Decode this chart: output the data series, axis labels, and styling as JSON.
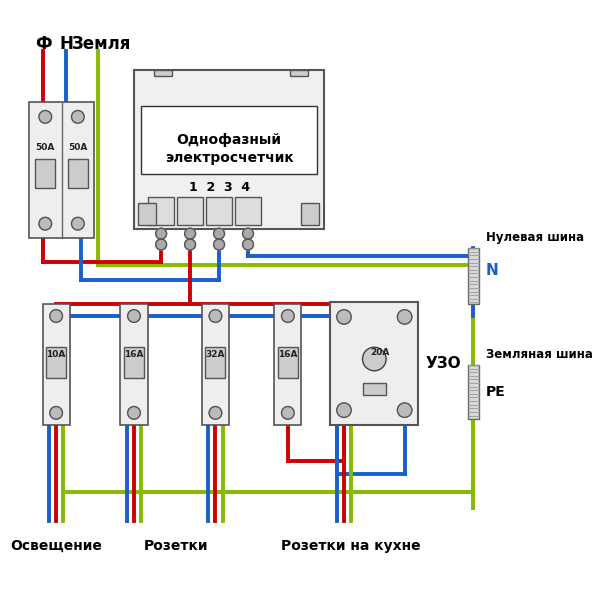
{
  "bg_color": "#ffffff",
  "wire_red": "#cc0000",
  "wire_blue": "#1a5fcc",
  "wire_green": "#88bb00",
  "label_F": "Ф",
  "label_N_top": "Н",
  "label_Z": "Земля",
  "label_meter_line1": "Однофазный",
  "label_meter_line2": "электросчетчик",
  "label_terminals": "1  2  3  4",
  "label_null_bus": "Нулевая шина",
  "label_N_bus": "N",
  "label_earth_bus": "Земляная шина",
  "label_PE": "PE",
  "label_uzo": "УЗО",
  "label_10A": "10A",
  "label_16A_1": "16A",
  "label_32A": "32A",
  "label_16A_2": "16A",
  "label_20A": "20A",
  "label_50A": "50A",
  "label_osvesh": "Освещение",
  "label_rozetki": "Розетки",
  "label_kuhnya": "Розетки на кухне"
}
